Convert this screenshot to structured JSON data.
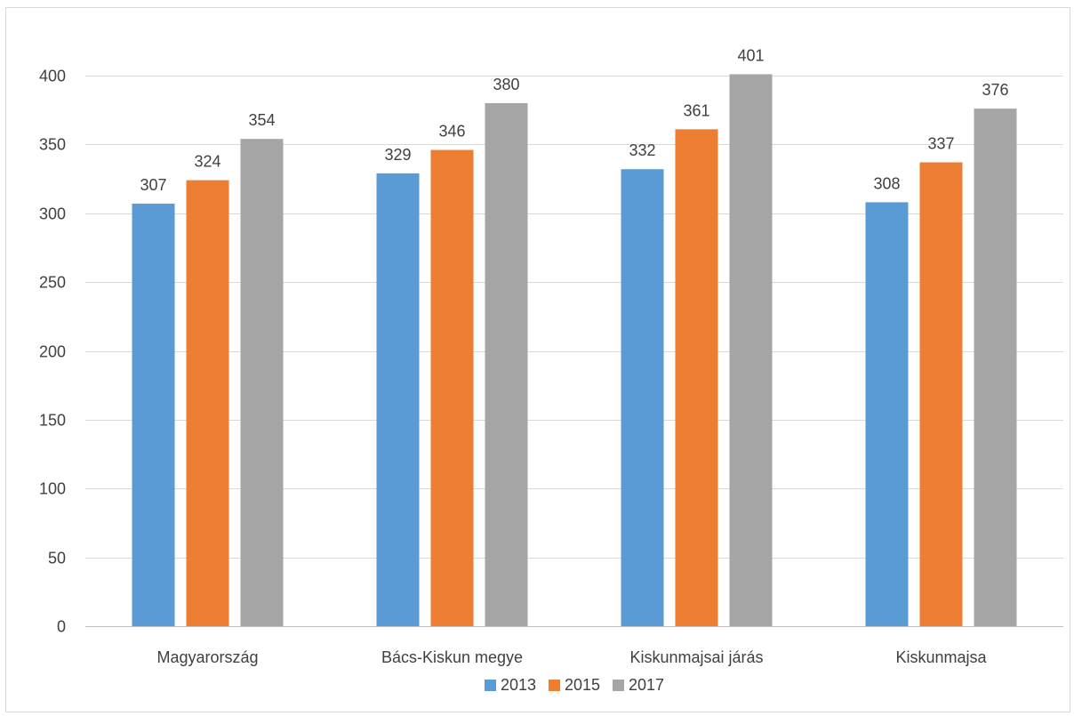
{
  "chart_data": {
    "type": "bar",
    "title": "",
    "xlabel": "",
    "ylabel": "",
    "categories": [
      "Magyarország",
      "Bács-Kiskun megye",
      "Kiskunmajsai járás",
      "Kiskunmajsa"
    ],
    "series": [
      {
        "name": "2013",
        "color": "#5b9bd5",
        "values": [
          307,
          329,
          332,
          308
        ]
      },
      {
        "name": "2015",
        "color": "#ed7d31",
        "values": [
          324,
          346,
          361,
          337
        ]
      },
      {
        "name": "2017",
        "color": "#a5a5a5",
        "values": [
          354,
          380,
          401,
          376
        ]
      }
    ],
    "ylim": [
      0,
      400
    ],
    "yticks": [
      0,
      50,
      100,
      150,
      200,
      250,
      300,
      350,
      400
    ],
    "grid": true,
    "legend_position": "bottom",
    "data_labels": true
  }
}
